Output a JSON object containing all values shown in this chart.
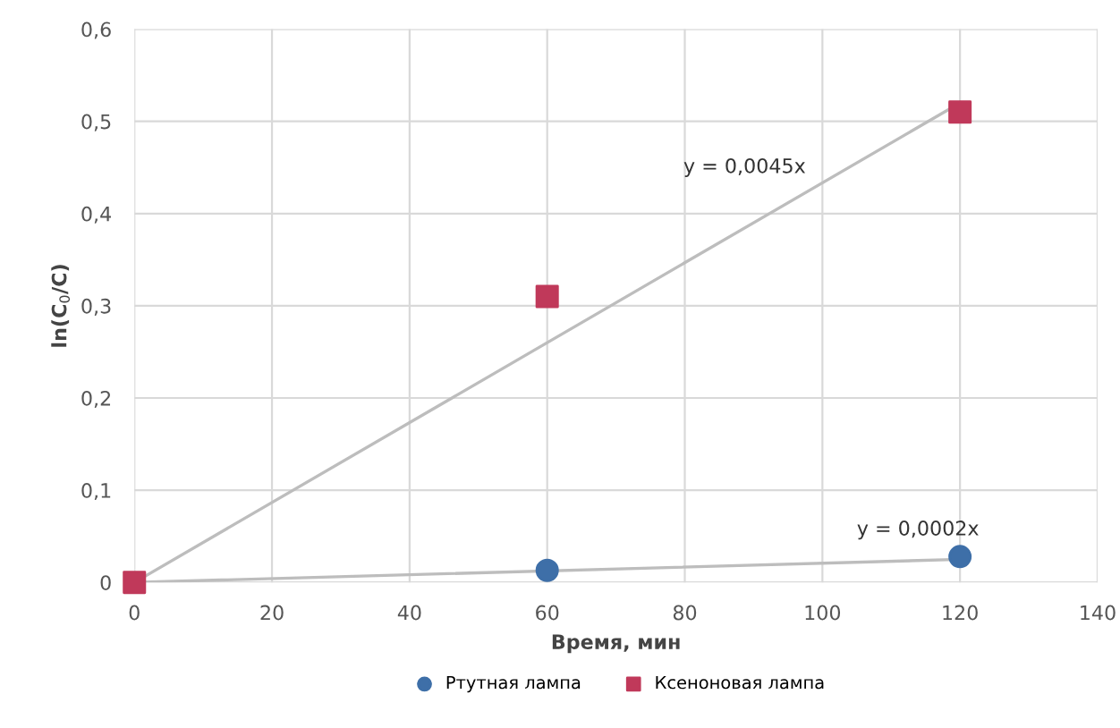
{
  "chart_data": {
    "type": "scatter",
    "xlabel": "Время, мин",
    "ylabel": "ln(C$_{0}$/C)",
    "xlim": [
      0,
      140
    ],
    "xticks": [
      0,
      20,
      40,
      60,
      80,
      100,
      120,
      140
    ],
    "ylim": [
      0,
      0.6
    ],
    "yticks": [
      {
        "value": 0,
        "label": "0"
      },
      {
        "value": 0.1,
        "label": "0,1"
      },
      {
        "value": 0.2,
        "label": "0,2"
      },
      {
        "value": 0.3,
        "label": "0,3"
      },
      {
        "value": 0.4,
        "label": "0,4"
      },
      {
        "value": 0.5,
        "label": "0,5"
      },
      {
        "value": 0.6,
        "label": "0,6"
      }
    ],
    "grid": true,
    "legend": "bottom",
    "series": [
      {
        "type": "line",
        "color": "#bdbdbd",
        "marker": "none",
        "x": [
          0,
          120
        ],
        "values": [
          0,
          0.52
        ]
      },
      {
        "type": "line",
        "color": "#bdbdbd",
        "marker": "none",
        "x": [
          0,
          120
        ],
        "values": [
          0,
          0.025
        ]
      },
      {
        "name": "Ртутная лампа",
        "color": "#3e6fa8",
        "marker": "circle",
        "x": [
          60,
          120
        ],
        "values": [
          0.013,
          0.028
        ]
      },
      {
        "name": "Ксеноновая лампа",
        "color": "#c0395a",
        "marker": "square",
        "x": [
          0,
          60,
          120
        ],
        "values": [
          0,
          0.31,
          0.51
        ]
      }
    ],
    "annotations": [
      "y = 0,0045x",
      "y = 0,0002x"
    ]
  }
}
